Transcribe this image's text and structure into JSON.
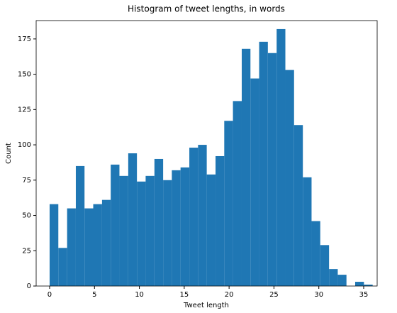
{
  "chart_data": {
    "type": "histogram",
    "title": "Histogram of tweet lengths, in words",
    "x_label": "Tweet length",
    "y_label": "Count",
    "color": "#1f77b4",
    "bins": [
      0,
      0.97,
      1.95,
      2.92,
      3.89,
      4.86,
      5.84,
      6.81,
      7.78,
      8.76,
      9.73,
      10.7,
      11.68,
      12.65,
      13.62,
      14.59,
      15.57,
      16.54,
      17.51,
      18.49,
      19.46,
      20.43,
      21.41,
      22.38,
      23.35,
      24.32,
      25.3,
      26.27,
      27.24,
      28.22,
      29.19,
      30.16,
      31.14,
      32.11,
      33.08,
      34.05,
      35.03,
      36
    ],
    "values": [
      58,
      27,
      55,
      85,
      55,
      58,
      61,
      86,
      78,
      94,
      74,
      78,
      90,
      75,
      82,
      84,
      98,
      100,
      79,
      92,
      117,
      131,
      168,
      147,
      173,
      165,
      182,
      153,
      114,
      77,
      46,
      29,
      12,
      8,
      0,
      3,
      1
    ],
    "xlim": [
      -1.5,
      36.5
    ],
    "xticks": [
      0,
      5,
      10,
      15,
      20,
      25,
      30,
      35
    ],
    "ylim": [
      0,
      188
    ],
    "yticks": [
      0,
      25,
      50,
      75,
      100,
      125,
      150,
      175
    ]
  }
}
